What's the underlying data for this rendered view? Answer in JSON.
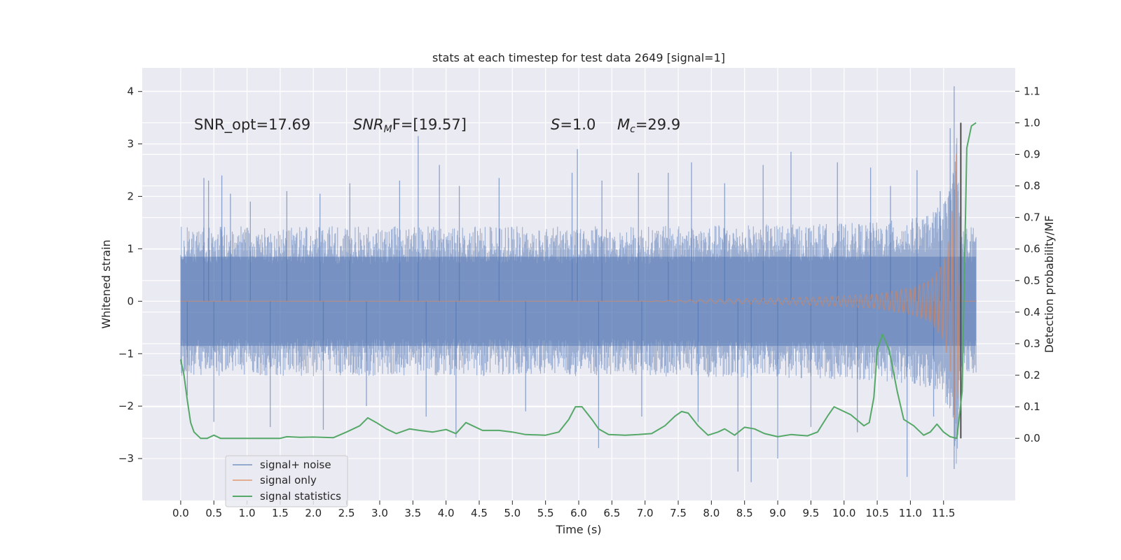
{
  "chart_data": {
    "type": "line",
    "title": "stats at each timestep for test data 2649 [signal=1]",
    "xlabel": "Time (s)",
    "ylabel_left": "Whitened strain",
    "ylabel_right": "Detection probability/MF",
    "xlim": [
      -0.58,
      12.58
    ],
    "ylim_left": [
      -3.8,
      4.45
    ],
    "ylim_right": [
      -0.197,
      1.174
    ],
    "x_ticks": [
      "0.0",
      "0.5",
      "1.0",
      "1.5",
      "2.0",
      "2.5",
      "3.0",
      "3.5",
      "4.0",
      "4.5",
      "5.0",
      "5.5",
      "6.0",
      "6.5",
      "7.0",
      "7.5",
      "8.0",
      "8.5",
      "9.0",
      "9.5",
      "10.0",
      "10.5",
      "11.0",
      "11.5"
    ],
    "y_ticks_left": [
      "−3",
      "−2",
      "−1",
      "0",
      "1",
      "2",
      "3",
      "4"
    ],
    "y_ticks_right": [
      "0.0",
      "0.1",
      "0.2",
      "0.3",
      "0.4",
      "0.5",
      "0.6",
      "0.7",
      "0.8",
      "0.9",
      "1.0",
      "1.1"
    ],
    "grid": true,
    "legend_position": "lower-left",
    "annotations": [
      {
        "text": "SNR_opt=17.69"
      },
      {
        "base": "SNR",
        "sub": "M",
        "tail": "F=[19.57]"
      },
      {
        "base": "S",
        "tail": "=1.0"
      },
      {
        "base": "M",
        "sub": "c",
        "tail": "=29.9"
      }
    ],
    "series": [
      {
        "name": "signal+ noise",
        "axis": "left",
        "color": "#4c72b0",
        "x_range": [
          0.0,
          11.99
        ],
        "typical_envelope": [
          -1.3,
          1.3
        ],
        "spikes": [
          {
            "x": 0.35,
            "y": 2.35
          },
          {
            "x": 0.42,
            "y": 2.3
          },
          {
            "x": 0.62,
            "y": 2.4
          },
          {
            "x": 0.75,
            "y": 2.05
          },
          {
            "x": 1.05,
            "y": 1.9
          },
          {
            "x": 1.6,
            "y": 2.1
          },
          {
            "x": 2.1,
            "y": 2.05
          },
          {
            "x": 2.55,
            "y": 2.25
          },
          {
            "x": 3.3,
            "y": 2.3
          },
          {
            "x": 3.58,
            "y": 3.15
          },
          {
            "x": 3.9,
            "y": 2.6
          },
          {
            "x": 4.2,
            "y": 2.2
          },
          {
            "x": 4.8,
            "y": 2.35
          },
          {
            "x": 5.9,
            "y": 2.45
          },
          {
            "x": 5.98,
            "y": 2.9
          },
          {
            "x": 6.35,
            "y": 2.3
          },
          {
            "x": 6.9,
            "y": 2.45
          },
          {
            "x": 7.35,
            "y": 2.45
          },
          {
            "x": 7.7,
            "y": 2.65
          },
          {
            "x": 8.2,
            "y": 2.25
          },
          {
            "x": 8.78,
            "y": 2.6
          },
          {
            "x": 9.2,
            "y": 2.85
          },
          {
            "x": 9.9,
            "y": 2.65
          },
          {
            "x": 10.4,
            "y": 2.55
          },
          {
            "x": 10.7,
            "y": 2.2
          },
          {
            "x": 11.1,
            "y": 2.5
          },
          {
            "x": 11.45,
            "y": 2.1
          },
          {
            "x": 11.6,
            "y": 3.3
          },
          {
            "x": 11.66,
            "y": 4.1
          },
          {
            "x": 0.1,
            "y": -1.8
          },
          {
            "x": 0.5,
            "y": -2.3
          },
          {
            "x": 1.35,
            "y": -2.4
          },
          {
            "x": 2.15,
            "y": -2.45
          },
          {
            "x": 2.8,
            "y": -2.0
          },
          {
            "x": 3.7,
            "y": -2.2
          },
          {
            "x": 4.15,
            "y": -2.6
          },
          {
            "x": 5.2,
            "y": -2.1
          },
          {
            "x": 6.3,
            "y": -2.8
          },
          {
            "x": 6.95,
            "y": -2.2
          },
          {
            "x": 7.8,
            "y": -2.3
          },
          {
            "x": 8.4,
            "y": -3.25
          },
          {
            "x": 8.6,
            "y": -3.45
          },
          {
            "x": 9.0,
            "y": -3.0
          },
          {
            "x": 9.5,
            "y": -2.4
          },
          {
            "x": 10.2,
            "y": -2.5
          },
          {
            "x": 10.95,
            "y": -3.35
          },
          {
            "x": 11.35,
            "y": -2.2
          },
          {
            "x": 11.66,
            "y": -3.2
          }
        ]
      },
      {
        "name": "signal only",
        "axis": "left",
        "color": "#dd8452",
        "x_range": [
          0.0,
          12.0
        ],
        "amplitude": [
          [
            0.0,
            0.0
          ],
          [
            7.0,
            0.0
          ],
          [
            8.0,
            0.04
          ],
          [
            9.0,
            0.06
          ],
          [
            10.0,
            0.1
          ],
          [
            10.5,
            0.14
          ],
          [
            11.0,
            0.25
          ],
          [
            11.3,
            0.4
          ],
          [
            11.5,
            0.75
          ],
          [
            11.6,
            1.3
          ],
          [
            11.65,
            2.0
          ],
          [
            11.7,
            3.0
          ],
          [
            11.75,
            0.0
          ],
          [
            12.0,
            0.0
          ]
        ]
      },
      {
        "name": "signal statistics",
        "axis": "right",
        "color": "#55a868",
        "points": [
          [
            0.0,
            0.25
          ],
          [
            0.05,
            0.2
          ],
          [
            0.1,
            0.12
          ],
          [
            0.15,
            0.05
          ],
          [
            0.2,
            0.02
          ],
          [
            0.3,
            0.0
          ],
          [
            0.4,
            0.0
          ],
          [
            0.5,
            0.01
          ],
          [
            0.6,
            0.0
          ],
          [
            0.8,
            0.0
          ],
          [
            1.0,
            0.0
          ],
          [
            1.5,
            0.0
          ],
          [
            1.6,
            0.005
          ],
          [
            1.8,
            0.003
          ],
          [
            2.0,
            0.004
          ],
          [
            2.3,
            0.002
          ],
          [
            2.5,
            0.02
          ],
          [
            2.7,
            0.04
          ],
          [
            2.82,
            0.065
          ],
          [
            2.95,
            0.05
          ],
          [
            3.1,
            0.03
          ],
          [
            3.25,
            0.015
          ],
          [
            3.45,
            0.03
          ],
          [
            3.6,
            0.025
          ],
          [
            3.8,
            0.02
          ],
          [
            4.0,
            0.028
          ],
          [
            4.15,
            0.015
          ],
          [
            4.3,
            0.05
          ],
          [
            4.4,
            0.04
          ],
          [
            4.55,
            0.025
          ],
          [
            4.8,
            0.025
          ],
          [
            5.0,
            0.02
          ],
          [
            5.2,
            0.012
          ],
          [
            5.5,
            0.01
          ],
          [
            5.7,
            0.02
          ],
          [
            5.85,
            0.06
          ],
          [
            5.95,
            0.1
          ],
          [
            6.05,
            0.1
          ],
          [
            6.2,
            0.06
          ],
          [
            6.3,
            0.03
          ],
          [
            6.45,
            0.012
          ],
          [
            6.7,
            0.01
          ],
          [
            6.9,
            0.012
          ],
          [
            7.1,
            0.015
          ],
          [
            7.3,
            0.04
          ],
          [
            7.45,
            0.07
          ],
          [
            7.55,
            0.085
          ],
          [
            7.65,
            0.08
          ],
          [
            7.8,
            0.04
          ],
          [
            7.95,
            0.01
          ],
          [
            8.1,
            0.02
          ],
          [
            8.2,
            0.03
          ],
          [
            8.35,
            0.01
          ],
          [
            8.5,
            0.035
          ],
          [
            8.65,
            0.03
          ],
          [
            8.8,
            0.015
          ],
          [
            9.0,
            0.005
          ],
          [
            9.2,
            0.012
          ],
          [
            9.45,
            0.008
          ],
          [
            9.6,
            0.02
          ],
          [
            9.75,
            0.07
          ],
          [
            9.85,
            0.1
          ],
          [
            10.0,
            0.085
          ],
          [
            10.1,
            0.075
          ],
          [
            10.3,
            0.04
          ],
          [
            10.38,
            0.05
          ],
          [
            10.45,
            0.13
          ],
          [
            10.5,
            0.28
          ],
          [
            10.58,
            0.33
          ],
          [
            10.68,
            0.28
          ],
          [
            10.8,
            0.15
          ],
          [
            10.9,
            0.06
          ],
          [
            11.05,
            0.04
          ],
          [
            11.2,
            0.01
          ],
          [
            11.3,
            0.02
          ],
          [
            11.4,
            0.045
          ],
          [
            11.5,
            0.02
          ],
          [
            11.6,
            0.005
          ],
          [
            11.7,
            0.0
          ],
          [
            11.78,
            0.15
          ],
          [
            11.85,
            0.92
          ],
          [
            11.92,
            0.99
          ],
          [
            11.99,
            1.0
          ]
        ]
      },
      {
        "name": "merger marker",
        "axis": "right",
        "color": "#4d4d4d",
        "vertical_line_x": 11.76,
        "y_range": [
          0.0,
          1.0
        ]
      }
    ]
  }
}
